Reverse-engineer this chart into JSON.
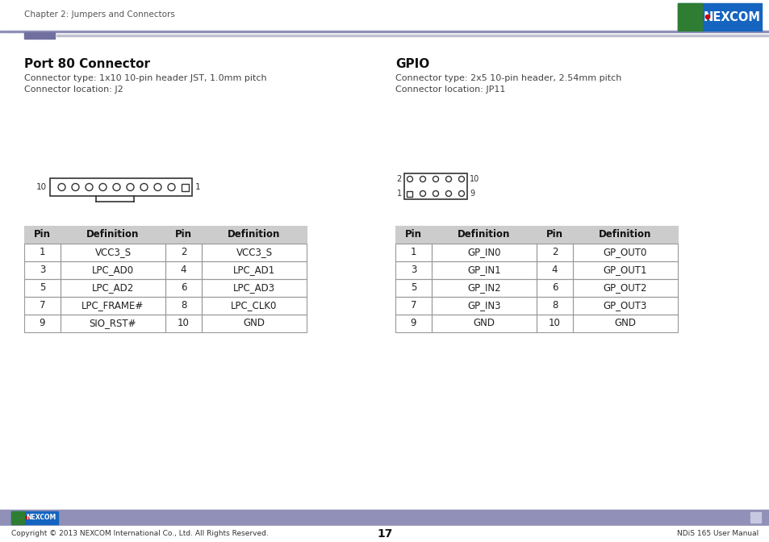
{
  "page_title": "Chapter 2: Jumpers and Connectors",
  "page_number": "17",
  "footer_right": "NDiS 165 User Manual",
  "footer_left": "Copyright © 2013 NEXCOM International Co., Ltd. All Rights Reserved.",
  "section1_title": "Port 80 Connector",
  "section1_line1": "Connector type: 1x10 10-pin header JST, 1.0mm pitch",
  "section1_line2": "Connector location: J2",
  "section2_title": "GPIO",
  "section2_line1": "Connector type: 2x5 10-pin header, 2.54mm pitch",
  "section2_line2": "Connector location: JP11",
  "table1_headers": [
    "Pin",
    "Definition",
    "Pin",
    "Definition"
  ],
  "table1_rows": [
    [
      "1",
      "VCC3_S",
      "2",
      "VCC3_S"
    ],
    [
      "3",
      "LPC_AD0",
      "4",
      "LPC_AD1"
    ],
    [
      "5",
      "LPC_AD2",
      "6",
      "LPC_AD3"
    ],
    [
      "7",
      "LPC_FRAME#",
      "8",
      "LPC_CLK0"
    ],
    [
      "9",
      "SIO_RST#",
      "10",
      "GND"
    ]
  ],
  "table2_headers": [
    "Pin",
    "Definition",
    "Pin",
    "Definition"
  ],
  "table2_rows": [
    [
      "1",
      "GP_IN0",
      "2",
      "GP_OUT0"
    ],
    [
      "3",
      "GP_IN1",
      "4",
      "GP_OUT1"
    ],
    [
      "5",
      "GP_IN2",
      "6",
      "GP_OUT2"
    ],
    [
      "7",
      "GP_IN3",
      "8",
      "GP_OUT3"
    ],
    [
      "9",
      "GND",
      "10",
      "GND"
    ]
  ],
  "bg_color": "#ffffff",
  "nexcom_blue": "#1565c0",
  "nexcom_green": "#2e7d32",
  "nexcom_red": "#cc0000",
  "footer_bar_color": "#9090b8",
  "header_accent_color": "#7070a0",
  "table_header_bg": "#cccccc",
  "table_border_color": "#999999"
}
